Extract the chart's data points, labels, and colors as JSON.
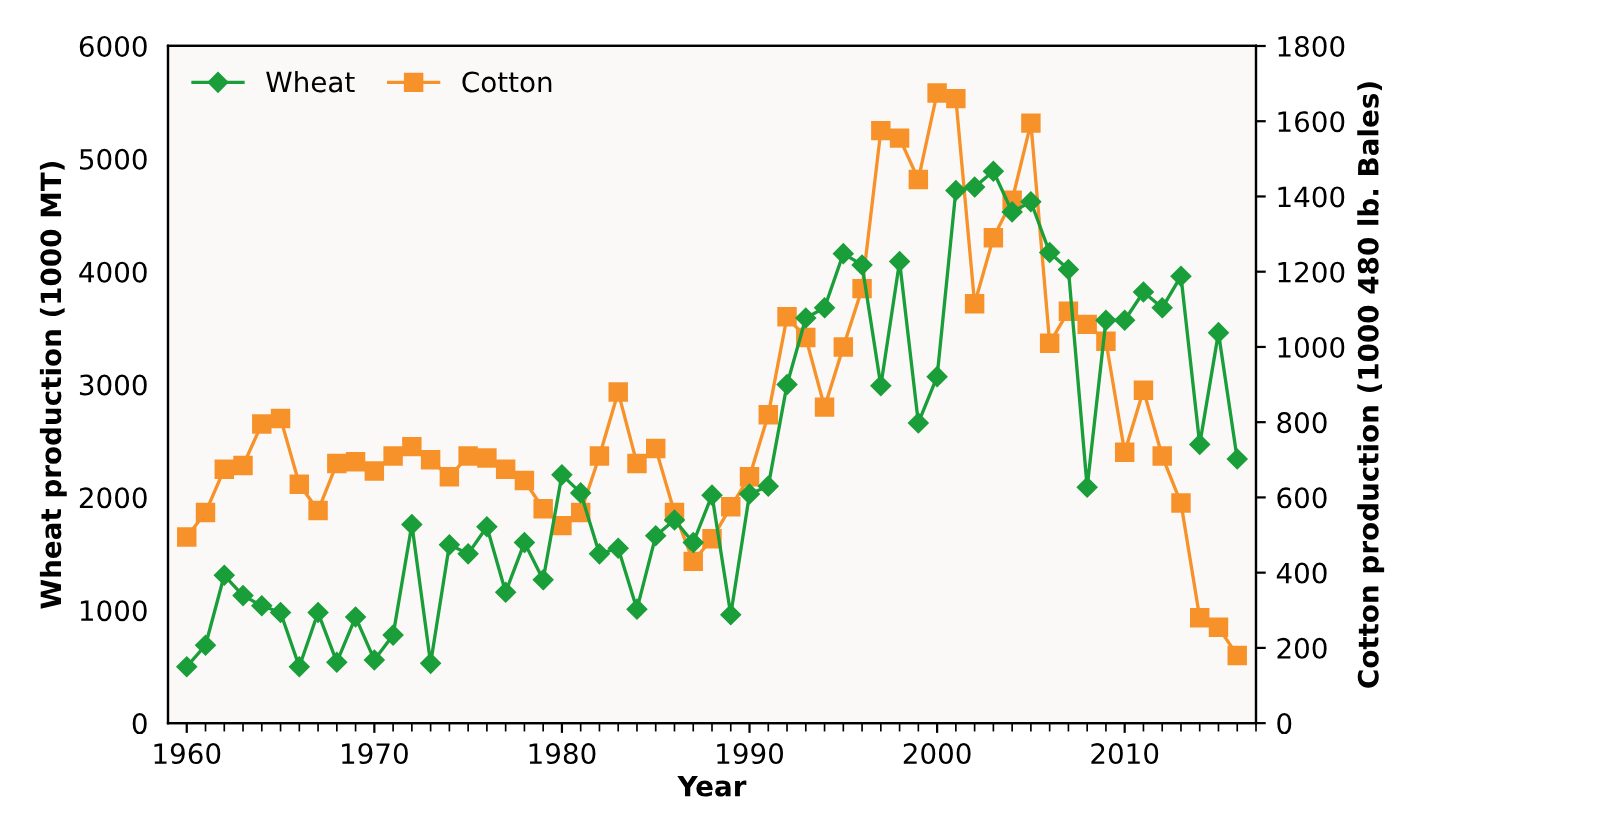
{
  "chart_data": {
    "type": "line",
    "xlabel": "Year",
    "ylabel": "Wheat production (1000 MT)",
    "y2label": "Cotton production (1000 480 lb. Bales)",
    "x": [
      1960,
      1961,
      1962,
      1963,
      1964,
      1965,
      1966,
      1967,
      1968,
      1969,
      1970,
      1971,
      1972,
      1973,
      1974,
      1975,
      1976,
      1977,
      1978,
      1979,
      1980,
      1981,
      1982,
      1983,
      1984,
      1985,
      1986,
      1987,
      1988,
      1989,
      1990,
      1991,
      1992,
      1993,
      1994,
      1995,
      1996,
      1997,
      1998,
      1999,
      2000,
      2001,
      2002,
      2003,
      2004,
      2005,
      2006,
      2007,
      2008,
      2009,
      2010,
      2011,
      2012,
      2013,
      2014,
      2015,
      2016
    ],
    "series": [
      {
        "name": "Wheat",
        "color": "#1a9e3a",
        "marker": "diamond",
        "values": [
          500,
          690,
          1310,
          1130,
          1040,
          980,
          500,
          980,
          540,
          940,
          560,
          780,
          1760,
          530,
          1580,
          1500,
          1740,
          1160,
          1600,
          1270,
          2200,
          2040,
          1500,
          1550,
          1010,
          1660,
          1800,
          1600,
          2020,
          960,
          2030,
          2100,
          3000,
          3590,
          3680,
          4160,
          4060,
          2990,
          4090,
          2660,
          3070,
          4720,
          4750,
          4890,
          4530,
          4620,
          4170,
          4020,
          2090,
          3570,
          3570,
          3820,
          3680,
          3960,
          2470,
          3460,
          2340
        ]
      },
      {
        "name": "Cotton",
        "color": "#f7922a",
        "marker": "square",
        "axis": "y2",
        "values": [
          495,
          560,
          675,
          685,
          795,
          810,
          635,
          565,
          690,
          695,
          670,
          710,
          735,
          700,
          655,
          710,
          705,
          675,
          645,
          570,
          525,
          560,
          710,
          880,
          690,
          730,
          560,
          430,
          490,
          575,
          655,
          820,
          1080,
          1025,
          840,
          1000,
          1155,
          1575,
          1555,
          1445,
          1675,
          1660,
          1115,
          1290,
          1390,
          1595,
          1010,
          1095,
          1060,
          1015,
          720,
          885,
          710,
          585,
          280,
          255,
          180
        ]
      }
    ],
    "xlim": [
      1959,
      2017
    ],
    "xticks": [
      1960,
      1970,
      1980,
      1990,
      2000,
      2010
    ],
    "ylim": [
      0,
      6000
    ],
    "yticks": [
      0,
      1000,
      2000,
      3000,
      4000,
      5000,
      6000
    ],
    "y2lim": [
      0,
      1800
    ],
    "y2ticks": [
      0,
      200,
      400,
      600,
      800,
      1000,
      1200,
      1400,
      1600,
      1800
    ],
    "grid": false,
    "legend": "top left",
    "line_style": "solid"
  }
}
